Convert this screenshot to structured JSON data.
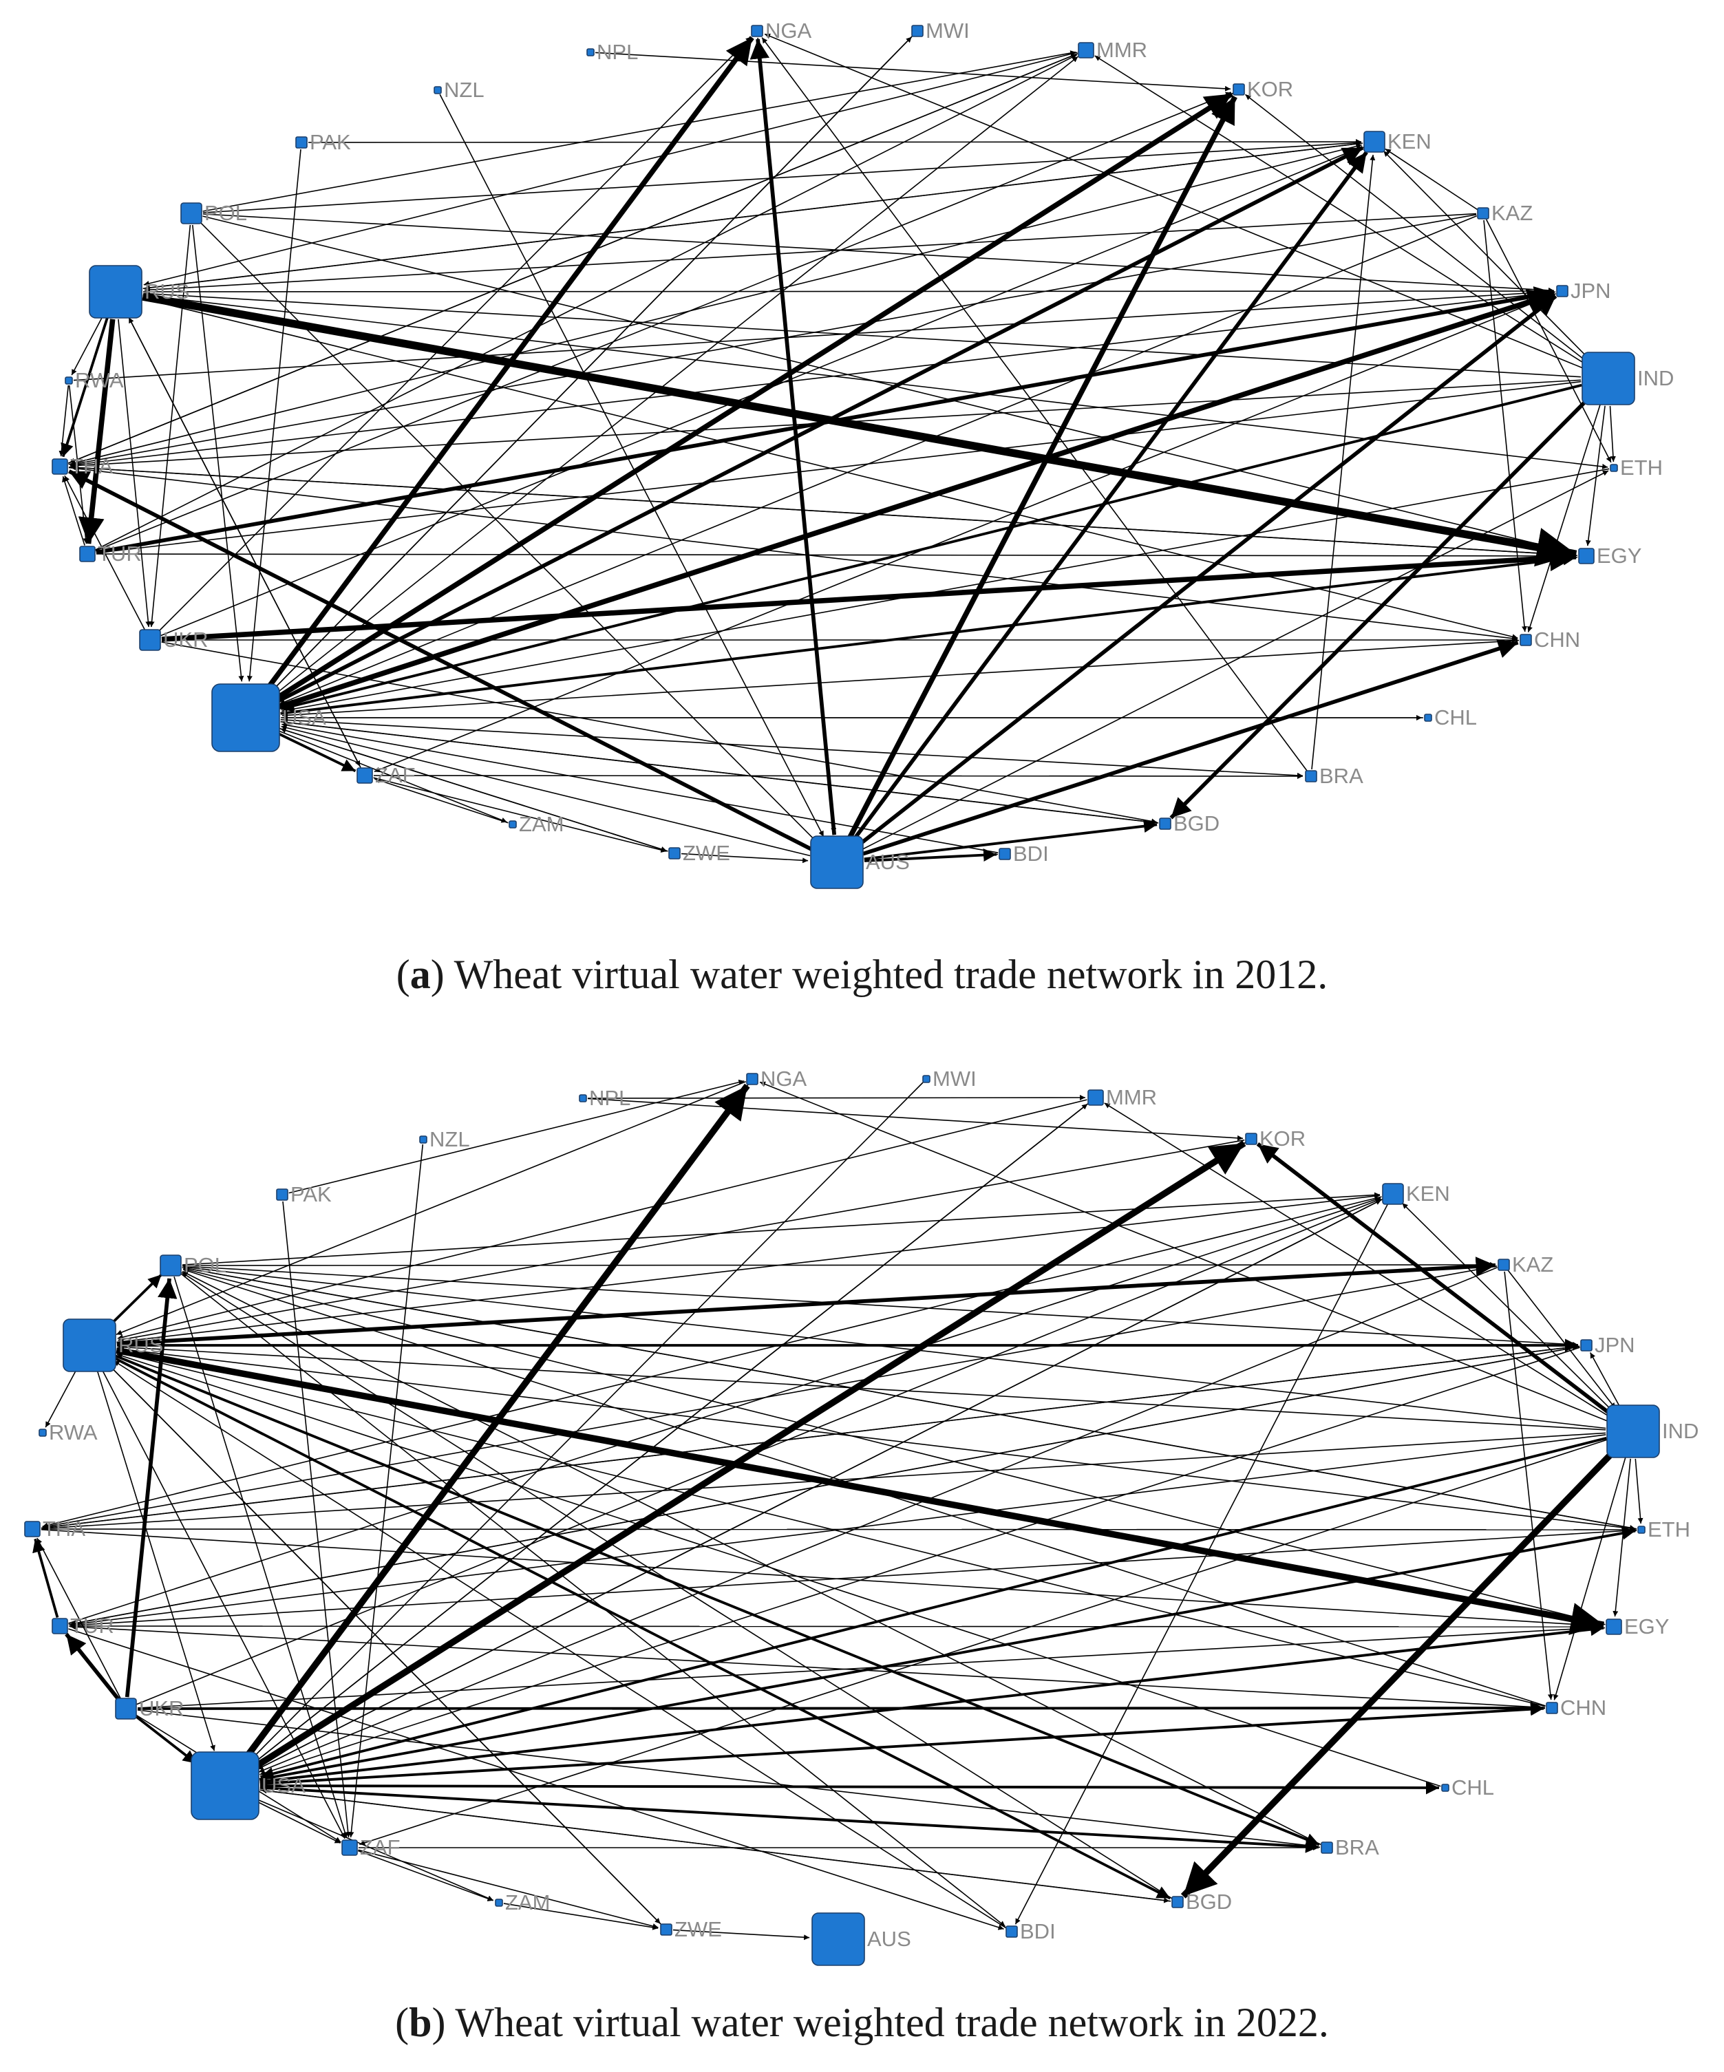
{
  "colors": {
    "node_fill": "#1e78d2",
    "node_stroke": "#1b3f6b",
    "edge": "#000000",
    "label": "#8a8a8a"
  },
  "panel_a": {
    "caption_letter": "a",
    "caption_text": "Wheat virtual water weighted trade network in 2012.",
    "nodes": [
      {
        "id": "NGA",
        "size": 1
      },
      {
        "id": "MWI",
        "size": 1
      },
      {
        "id": "MMR",
        "size": 2
      },
      {
        "id": "NPL",
        "size": 0
      },
      {
        "id": "NZL",
        "size": 0
      },
      {
        "id": "KOR",
        "size": 1
      },
      {
        "id": "PAK",
        "size": 1
      },
      {
        "id": "KEN",
        "size": 3
      },
      {
        "id": "POL",
        "size": 3
      },
      {
        "id": "KAZ",
        "size": 1
      },
      {
        "id": "RUS",
        "size": 5
      },
      {
        "id": "JPN",
        "size": 1
      },
      {
        "id": "IND",
        "size": 5
      },
      {
        "id": "RWA",
        "size": 0
      },
      {
        "id": "THA",
        "size": 2
      },
      {
        "id": "ETH",
        "size": 0
      },
      {
        "id": "TUR",
        "size": 2
      },
      {
        "id": "EGY",
        "size": 2
      },
      {
        "id": "UKR",
        "size": 3
      },
      {
        "id": "CHN",
        "size": 1
      },
      {
        "id": "USA",
        "size": 6
      },
      {
        "id": "CHL",
        "size": 0
      },
      {
        "id": "ZAF",
        "size": 2
      },
      {
        "id": "BRA",
        "size": 1
      },
      {
        "id": "ZAM",
        "size": 0
      },
      {
        "id": "BGD",
        "size": 1
      },
      {
        "id": "ZWE",
        "size": 1
      },
      {
        "id": "AUS",
        "size": 5
      },
      {
        "id": "BDI",
        "size": 1
      }
    ],
    "edges": [
      [
        "RUS",
        "EGY",
        6
      ],
      [
        "USA",
        "NGA",
        4
      ],
      [
        "USA",
        "KOR",
        4
      ],
      [
        "USA",
        "JPN",
        4
      ],
      [
        "USA",
        "KEN",
        3
      ],
      [
        "AUS",
        "KOR",
        4
      ],
      [
        "AUS",
        "NGA",
        3
      ],
      [
        "AUS",
        "JPN",
        3
      ],
      [
        "AUS",
        "KEN",
        3
      ],
      [
        "AUS",
        "CHN",
        3
      ],
      [
        "AUS",
        "BGD",
        2
      ],
      [
        "AUS",
        "BDI",
        2
      ],
      [
        "AUS",
        "THA",
        3
      ],
      [
        "UKR",
        "EGY",
        4
      ],
      [
        "TUR",
        "JPN",
        3
      ],
      [
        "RUS",
        "TUR",
        4
      ],
      [
        "RUS",
        "THA",
        2
      ],
      [
        "RUS",
        "KEN",
        1
      ],
      [
        "RUS",
        "JPN",
        1
      ],
      [
        "IND",
        "BGD",
        3
      ],
      [
        "IND",
        "USA",
        2
      ],
      [
        "IND",
        "RUS",
        1
      ],
      [
        "IND",
        "ETH",
        1
      ],
      [
        "IND",
        "KOR",
        1
      ],
      [
        "IND",
        "KEN",
        1
      ],
      [
        "IND",
        "NGA",
        1
      ],
      [
        "IND",
        "MMR",
        1
      ],
      [
        "IND",
        "EGY",
        1
      ],
      [
        "IND",
        "CHN",
        1
      ],
      [
        "KAZ",
        "RUS",
        1
      ],
      [
        "KAZ",
        "THA",
        1
      ],
      [
        "KAZ",
        "ETH",
        1
      ],
      [
        "KAZ",
        "USA",
        1
      ],
      [
        "KAZ",
        "KEN",
        1
      ],
      [
        "POL",
        "KEN",
        1
      ],
      [
        "POL",
        "JPN",
        1
      ],
      [
        "POL",
        "EGY",
        1
      ],
      [
        "POL",
        "USA",
        1
      ],
      [
        "POL",
        "AUS",
        1
      ],
      [
        "POL",
        "UKR",
        1
      ],
      [
        "USA",
        "EGY",
        2
      ],
      [
        "USA",
        "ZAF",
        2
      ],
      [
        "USA",
        "ZAM",
        1
      ],
      [
        "USA",
        "BRA",
        1
      ],
      [
        "USA",
        "CHL",
        1
      ],
      [
        "USA",
        "MMR",
        1
      ],
      [
        "USA",
        "MWI",
        1
      ],
      [
        "UKR",
        "KEN",
        1
      ],
      [
        "UKR",
        "NGA",
        1
      ],
      [
        "UKR",
        "CHN",
        1
      ],
      [
        "TUR",
        "MMR",
        1
      ],
      [
        "TUR",
        "KOR",
        1
      ],
      [
        "TUR",
        "EGY",
        1
      ],
      [
        "THA",
        "CHN",
        1
      ],
      [
        "THA",
        "KEN",
        1
      ],
      [
        "THA",
        "MMR",
        1
      ],
      [
        "THA",
        "EGY",
        1
      ],
      [
        "RWA",
        "JPN",
        1
      ],
      [
        "RWA",
        "THA",
        1
      ],
      [
        "NPL",
        "KOR",
        1
      ],
      [
        "NZL",
        "AUS",
        1
      ],
      [
        "PAK",
        "KEN",
        1
      ],
      [
        "PAK",
        "USA",
        1
      ],
      [
        "MMR",
        "RUS",
        1
      ],
      [
        "MMR",
        "THA",
        1
      ],
      [
        "KOR",
        "USA",
        1
      ],
      [
        "MWI",
        "USA",
        1
      ],
      [
        "NGA",
        "AUS",
        1
      ],
      [
        "BRA",
        "KEN",
        1
      ],
      [
        "BRA",
        "NGA",
        1
      ],
      [
        "BGD",
        "USA",
        1
      ],
      [
        "BDI",
        "USA",
        1
      ],
      [
        "ZWE",
        "USA",
        1
      ],
      [
        "ZAM",
        "ZAF",
        1
      ],
      [
        "ZAF",
        "ZWE",
        1
      ],
      [
        "ZAF",
        "BRA",
        1
      ],
      [
        "ZAF",
        "RUS",
        1
      ],
      [
        "CHL",
        "USA",
        1
      ],
      [
        "CHN",
        "USA",
        1
      ],
      [
        "ETH",
        "USA",
        1
      ],
      [
        "EGY",
        "USA",
        1
      ],
      [
        "JPN",
        "ZAF",
        1
      ],
      [
        "KEN",
        "USA",
        1
      ],
      [
        "KAZ",
        "CHN",
        1
      ],
      [
        "AUS",
        "ETH",
        1
      ],
      [
        "AUS",
        "USA",
        1
      ],
      [
        "RUS",
        "ETH",
        1
      ],
      [
        "RUS",
        "CHN",
        1
      ],
      [
        "RUS",
        "ZAF",
        1
      ],
      [
        "UKR",
        "THA",
        1
      ],
      [
        "UKR",
        "BGD",
        1
      ],
      [
        "ZWE",
        "AUS",
        1
      ],
      [
        "BDI",
        "AUS",
        1
      ],
      [
        "USA",
        "ZWE",
        1
      ],
      [
        "USA",
        "BGD",
        1
      ],
      [
        "RUS",
        "UKR",
        1
      ],
      [
        "RUS",
        "RWA",
        1
      ],
      [
        "TUR",
        "THA",
        1
      ],
      [
        "RWA",
        "TUR",
        1
      ],
      [
        "IND",
        "THA",
        1
      ],
      [
        "IND",
        "TUR",
        1
      ],
      [
        "KEN",
        "RUS",
        1
      ],
      [
        "JPN",
        "THA",
        1
      ],
      [
        "EGY",
        "THA",
        1
      ],
      [
        "POL",
        "MMR",
        1
      ]
    ]
  },
  "panel_b": {
    "caption_letter": "b",
    "caption_text": "Wheat virtual water weighted trade network in 2022.",
    "nodes": [
      {
        "id": "NGA",
        "size": 1
      },
      {
        "id": "MWI",
        "size": 0
      },
      {
        "id": "MMR",
        "size": 2
      },
      {
        "id": "NPL",
        "size": 0
      },
      {
        "id": "NZL",
        "size": 0
      },
      {
        "id": "KOR",
        "size": 1
      },
      {
        "id": "PAK",
        "size": 1
      },
      {
        "id": "KEN",
        "size": 3
      },
      {
        "id": "POL",
        "size": 3
      },
      {
        "id": "KAZ",
        "size": 1
      },
      {
        "id": "RUS",
        "size": 5
      },
      {
        "id": "JPN",
        "size": 1
      },
      {
        "id": "RWA",
        "size": 0
      },
      {
        "id": "IND",
        "size": 5
      },
      {
        "id": "THA",
        "size": 2
      },
      {
        "id": "ETH",
        "size": 0
      },
      {
        "id": "TUR",
        "size": 2
      },
      {
        "id": "EGY",
        "size": 2
      },
      {
        "id": "UKR",
        "size": 3
      },
      {
        "id": "CHN",
        "size": 1
      },
      {
        "id": "USA",
        "size": 6
      },
      {
        "id": "CHL",
        "size": 0
      },
      {
        "id": "ZAF",
        "size": 2
      },
      {
        "id": "BRA",
        "size": 1
      },
      {
        "id": "ZAM",
        "size": 0
      },
      {
        "id": "BGD",
        "size": 1
      },
      {
        "id": "ZWE",
        "size": 1
      },
      {
        "id": "AUS",
        "size": 5
      },
      {
        "id": "BDI",
        "size": 1
      }
    ],
    "edges": [
      [
        "RUS",
        "EGY",
        5
      ],
      [
        "USA",
        "NGA",
        5
      ],
      [
        "USA",
        "KOR",
        5
      ],
      [
        "IND",
        "BGD",
        5
      ],
      [
        "IND",
        "KOR",
        3
      ],
      [
        "UKR",
        "POL",
        3
      ],
      [
        "UKR",
        "TUR",
        3
      ],
      [
        "RUS",
        "KAZ",
        3
      ],
      [
        "RUS",
        "JPN",
        2
      ],
      [
        "RUS",
        "BRA",
        2
      ],
      [
        "RUS",
        "BGD",
        2
      ],
      [
        "RUS",
        "POL",
        2
      ],
      [
        "UKR",
        "CHN",
        2
      ],
      [
        "UKR",
        "USA",
        2
      ],
      [
        "USA",
        "BRA",
        2
      ],
      [
        "USA",
        "EGY",
        2
      ],
      [
        "USA",
        "CHN",
        2
      ],
      [
        "USA",
        "ETH",
        2
      ],
      [
        "USA",
        "CHL",
        2
      ],
      [
        "TUR",
        "THA",
        2
      ],
      [
        "IND",
        "USA",
        2
      ],
      [
        "IND",
        "ETH",
        1
      ],
      [
        "IND",
        "JPN",
        1
      ],
      [
        "IND",
        "CHN",
        1
      ],
      [
        "IND",
        "EGY",
        1
      ],
      [
        "IND",
        "KEN",
        1
      ],
      [
        "IND",
        "RUS",
        1
      ],
      [
        "IND",
        "POL",
        1
      ],
      [
        "IND",
        "THA",
        1
      ],
      [
        "IND",
        "TUR",
        1
      ],
      [
        "KAZ",
        "USA",
        1
      ],
      [
        "KAZ",
        "THA",
        1
      ],
      [
        "KAZ",
        "CHN",
        1
      ],
      [
        "KAZ",
        "IND",
        1
      ],
      [
        "POL",
        "KEN",
        1
      ],
      [
        "POL",
        "JPN",
        1
      ],
      [
        "POL",
        "ZAF",
        1
      ],
      [
        "POL",
        "ETH",
        1
      ],
      [
        "POL",
        "BDI",
        1
      ],
      [
        "POL",
        "KAZ",
        1
      ],
      [
        "RUS",
        "RWA",
        1
      ],
      [
        "RUS",
        "ZAF",
        1
      ],
      [
        "RUS",
        "ZWE",
        1
      ],
      [
        "RUS",
        "ETH",
        1
      ],
      [
        "RUS",
        "KEN",
        1
      ],
      [
        "RUS",
        "USA",
        1
      ],
      [
        "UKR",
        "KEN",
        1
      ],
      [
        "UKR",
        "EGY",
        1
      ],
      [
        "UKR",
        "BRA",
        1
      ],
      [
        "UKR",
        "ZAF",
        1
      ],
      [
        "UKR",
        "THA",
        1
      ],
      [
        "TUR",
        "JPN",
        1
      ],
      [
        "TUR",
        "KEN",
        1
      ],
      [
        "TUR",
        "EGY",
        1
      ],
      [
        "TUR",
        "BDI",
        1
      ],
      [
        "THA",
        "ETH",
        1
      ],
      [
        "THA",
        "EGY",
        1
      ],
      [
        "THA",
        "JPN",
        1
      ],
      [
        "NPL",
        "MMR",
        1
      ],
      [
        "NPL",
        "KOR",
        1
      ],
      [
        "NZL",
        "ZAF",
        1
      ],
      [
        "PAK",
        "ZAF",
        1
      ],
      [
        "PAK",
        "NGA",
        1
      ],
      [
        "MWI",
        "USA",
        1
      ],
      [
        "MMR",
        "USA",
        1
      ],
      [
        "NGA",
        "USA",
        1
      ],
      [
        "KEN",
        "USA",
        1
      ],
      [
        "KEN",
        "BDI",
        1
      ],
      [
        "KOR",
        "USA",
        1
      ],
      [
        "JPN",
        "USA",
        1
      ],
      [
        "BGD",
        "USA",
        1
      ],
      [
        "BRA",
        "USA",
        1
      ],
      [
        "CHN",
        "USA",
        1
      ],
      [
        "EGY",
        "USA",
        1
      ],
      [
        "ETH",
        "USA",
        1
      ],
      [
        "ZAF",
        "ZAM",
        1
      ],
      [
        "ZAF",
        "ZWE",
        1
      ],
      [
        "ZAF",
        "BRA",
        1
      ],
      [
        "ZAM",
        "ZWE",
        1
      ],
      [
        "ZWE",
        "AUS",
        1
      ],
      [
        "USA",
        "ZAF",
        1
      ],
      [
        "USA",
        "BGD",
        1
      ],
      [
        "USA",
        "MMR",
        1
      ],
      [
        "USA",
        "ZAM",
        1
      ],
      [
        "USA",
        "KEN",
        1
      ],
      [
        "CHN",
        "RUS",
        1
      ],
      [
        "CHN",
        "POL",
        1
      ],
      [
        "EGY",
        "POL",
        1
      ],
      [
        "ETH",
        "POL",
        1
      ],
      [
        "JPN",
        "THA",
        1
      ],
      [
        "KEN",
        "THA",
        1
      ],
      [
        "MMR",
        "RUS",
        1
      ],
      [
        "BDI",
        "RUS",
        1
      ],
      [
        "BRA",
        "POL",
        1
      ],
      [
        "CHL",
        "RUS",
        1
      ],
      [
        "KOR",
        "RUS",
        1
      ],
      [
        "NGA",
        "RUS",
        1
      ],
      [
        "ETH",
        "TUR",
        1
      ],
      [
        "CHN",
        "TUR",
        1
      ],
      [
        "JPN",
        "TUR",
        1
      ],
      [
        "ZWE",
        "RUS",
        1
      ],
      [
        "BGD",
        "POL",
        1
      ],
      [
        "IND",
        "ZAF",
        1
      ],
      [
        "IND",
        "MMR",
        1
      ],
      [
        "IND",
        "NGA",
        1
      ]
    ]
  }
}
